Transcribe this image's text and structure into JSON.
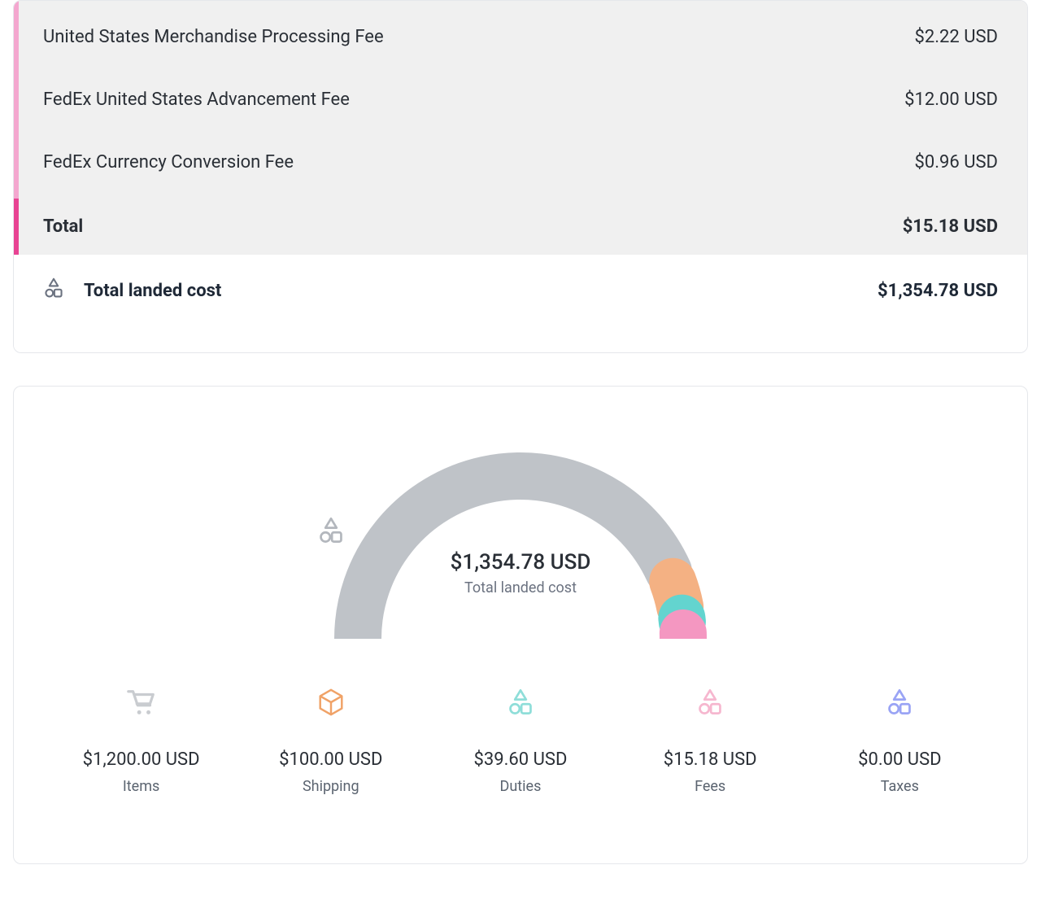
{
  "fees": {
    "accent_color_upper": "#f4a7cf",
    "accent_color_total": "#e84393",
    "rows": [
      {
        "label": "United States Merchandise Processing Fee",
        "value": "$2.22 USD"
      },
      {
        "label": "FedEx United States Advancement Fee",
        "value": "$12.00 USD"
      },
      {
        "label": "FedEx Currency Conversion Fee",
        "value": "$0.96 USD"
      }
    ],
    "total_label": "Total",
    "total_value": "$15.18 USD"
  },
  "landed": {
    "label": "Total landed cost",
    "value": "$1,354.78 USD",
    "icon_color": "#6b7280"
  },
  "gauge": {
    "center_amount": "$1,354.78 USD",
    "center_caption": "Total landed cost",
    "center_icon_color": "#b3b7bd",
    "track_width": 58,
    "gap_deg": 4,
    "segments": [
      {
        "name": "items",
        "value": 1200.0,
        "color": "#bfc3c8"
      },
      {
        "name": "shipping",
        "value": 100.0,
        "color": "#f4b183"
      },
      {
        "name": "duties",
        "value": 39.6,
        "color": "#63d4cf"
      },
      {
        "name": "fees",
        "value": 15.18,
        "color": "#f497c1"
      },
      {
        "name": "taxes",
        "value": 0.0,
        "color": "#9aa4f5"
      }
    ]
  },
  "breakdown": [
    {
      "key": "items",
      "label": "Items",
      "value": "$1,200.00 USD",
      "icon": "cart",
      "color": "#c9ccd0"
    },
    {
      "key": "shipping",
      "label": "Shipping",
      "value": "$100.00 USD",
      "icon": "box",
      "color": "#f0a267"
    },
    {
      "key": "duties",
      "label": "Duties",
      "value": "$39.60 USD",
      "icon": "shapes",
      "color": "#8fded9"
    },
    {
      "key": "fees",
      "label": "Fees",
      "value": "$15.18 USD",
      "icon": "shapes",
      "color": "#f6b7cf"
    },
    {
      "key": "taxes",
      "label": "Taxes",
      "value": "$0.00 USD",
      "icon": "shapes",
      "color": "#9aa4f5"
    }
  ],
  "colors": {
    "card_border": "#e5e7eb",
    "bg_fees": "#f0f0f0",
    "text_primary": "#2a2f36",
    "text_secondary": "#6b7280"
  }
}
